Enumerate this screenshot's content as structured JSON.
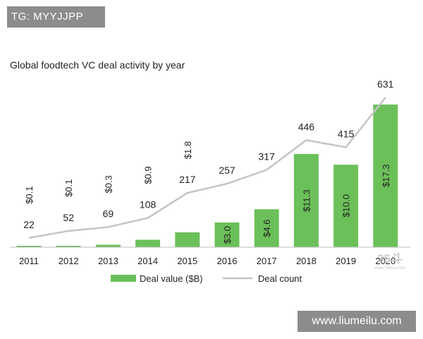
{
  "overlays": {
    "top_badge": "TG: MYYJJPP",
    "bottom_badge": "www.liumeilu.com",
    "corner_watermark_big": "35斗",
    "corner_watermark_small": "www.35dou.com"
  },
  "colors": {
    "bar": "#6cc05a",
    "line": "#c4c4c4",
    "axis": "#bdbdbd",
    "text": "#222222"
  },
  "chart_data": {
    "type": "bar",
    "title": "Global foodtech VC deal activity by year",
    "categories": [
      "2011",
      "2012",
      "2013",
      "2014",
      "2015",
      "2016",
      "2017",
      "2018",
      "2019",
      "2020"
    ],
    "series": [
      {
        "name": "Deal value ($B)",
        "type": "bar",
        "values": [
          0.1,
          0.1,
          0.3,
          0.9,
          1.8,
          3.0,
          4.6,
          11.3,
          10.0,
          17.3
        ],
        "labels": [
          "$0.1",
          "$0.1",
          "$0.3",
          "$0.9",
          "$1.8",
          "$3.0",
          "$4.6",
          "$11.3",
          "$10.0",
          "$17.3"
        ]
      },
      {
        "name": "Deal count",
        "type": "line",
        "values": [
          22,
          52,
          69,
          108,
          217,
          257,
          317,
          446,
          415,
          631
        ],
        "labels": [
          "22",
          "52",
          "69",
          "108",
          "217",
          "257",
          "317",
          "446",
          "415",
          "631"
        ]
      }
    ],
    "legend": "bottom-center",
    "grid": false
  }
}
